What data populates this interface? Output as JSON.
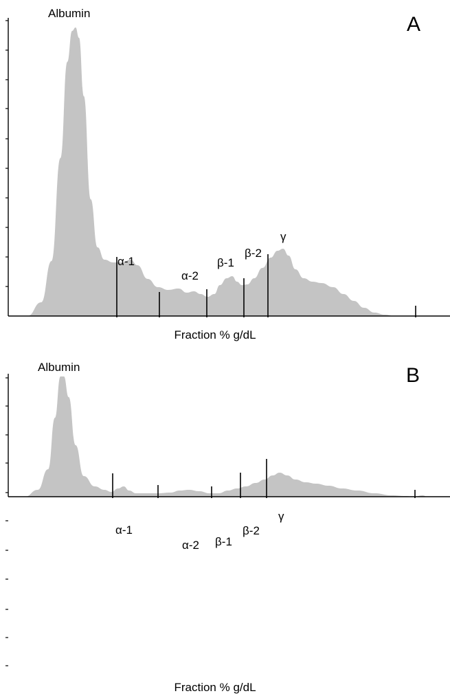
{
  "chart_data": [
    {
      "type": "area",
      "panel_label": "A",
      "title": "",
      "xlabel": "Fraction % g/dL",
      "ylabel": "",
      "fractions": [
        {
          "name": "Albumin"
        },
        {
          "name": "α-1"
        },
        {
          "name": "α-2"
        },
        {
          "name": "β-1"
        },
        {
          "name": "β-2"
        },
        {
          "name": "γ"
        }
      ]
    },
    {
      "type": "area",
      "panel_label": "B",
      "title": "",
      "xlabel": "Fraction % g/dL",
      "ylabel": "",
      "fractions": [
        {
          "name": "Albumin"
        },
        {
          "name": "α-1"
        },
        {
          "name": "α-2"
        },
        {
          "name": "β-1"
        },
        {
          "name": "β-2"
        },
        {
          "name": "γ"
        }
      ]
    }
  ]
}
